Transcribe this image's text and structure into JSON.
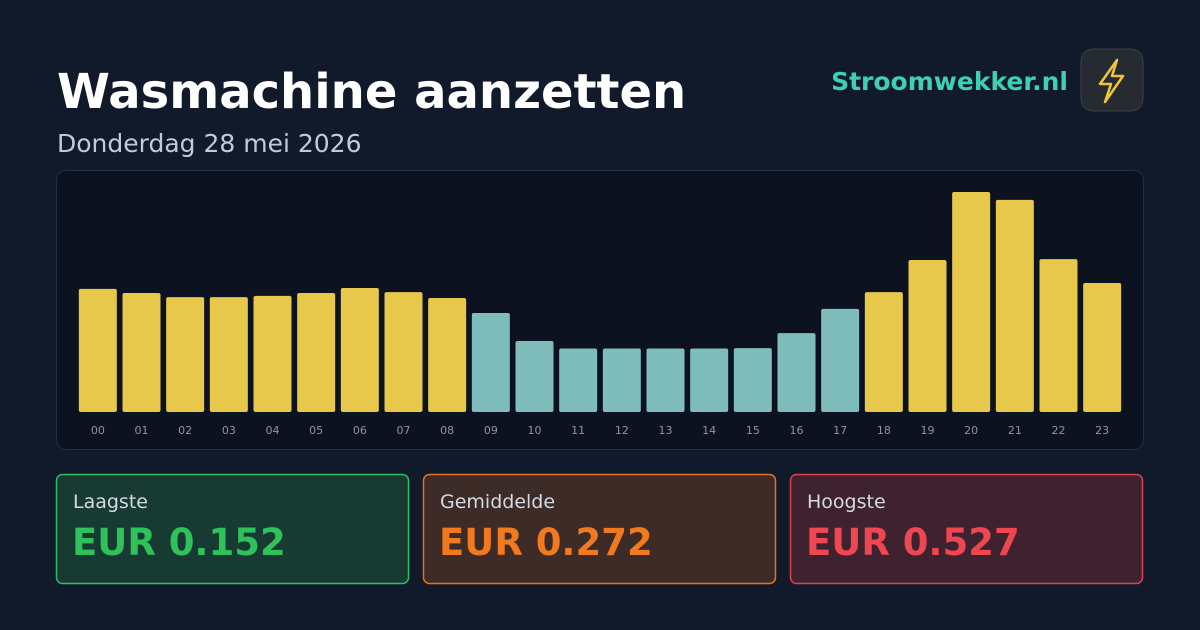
{
  "header": {
    "title": "Wasmachine aanzetten",
    "subtitle": "Donderdag 28 mei 2026",
    "brand": "Stroomwekker.nl"
  },
  "chart_data": {
    "type": "bar",
    "categories": [
      "00",
      "01",
      "02",
      "03",
      "04",
      "05",
      "06",
      "07",
      "08",
      "09",
      "10",
      "11",
      "12",
      "13",
      "14",
      "15",
      "16",
      "17",
      "18",
      "19",
      "20",
      "21",
      "22",
      "23"
    ],
    "values": [
      0.295,
      0.285,
      0.275,
      0.275,
      0.278,
      0.285,
      0.297,
      0.287,
      0.273,
      0.237,
      0.17,
      0.152,
      0.152,
      0.152,
      0.152,
      0.153,
      0.189,
      0.247,
      0.287,
      0.364,
      0.527,
      0.508,
      0.366,
      0.309
    ],
    "colors": [
      "#e8c84a",
      "#e8c84a",
      "#e8c84a",
      "#e8c84a",
      "#e8c84a",
      "#e8c84a",
      "#e8c84a",
      "#e8c84a",
      "#e8c84a",
      "#7fbdbd",
      "#7fbdbd",
      "#7fbdbd",
      "#7fbdbd",
      "#7fbdbd",
      "#7fbdbd",
      "#7fbdbd",
      "#7fbdbd",
      "#7fbdbd",
      "#e8c84a",
      "#e8c84a",
      "#e8c84a",
      "#e8c84a",
      "#e8c84a",
      "#e8c84a"
    ],
    "ylim": [
      0,
      0.57
    ]
  },
  "stats": [
    {
      "label": "Laagste",
      "value": "EUR 0.152"
    },
    {
      "label": "Gemiddelde",
      "value": "EUR 0.272"
    },
    {
      "label": "Hoogste",
      "value": "EUR 0.527"
    }
  ]
}
